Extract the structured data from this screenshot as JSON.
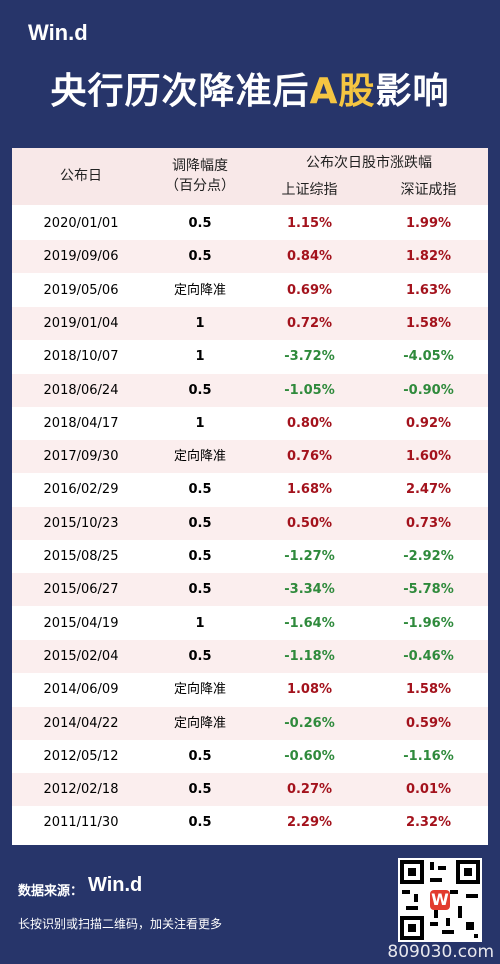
{
  "header": {
    "logo": "Win.d",
    "title": [
      "央行历次降准后",
      "A股",
      "影响"
    ]
  },
  "table": {
    "columns": [
      "公布日",
      "调降幅度",
      "公布次日股市涨跌幅"
    ],
    "columns_sub": [
      null,
      "（百分点）",
      null
    ],
    "subcolumns": [
      "上证综指",
      "深证成指"
    ],
    "rows": [
      [
        "2020/01/01",
        "0.5",
        "1.15%",
        "1.99%"
      ],
      [
        "2019/09/06",
        "0.5",
        "0.84%",
        "1.82%"
      ],
      [
        "2019/05/06",
        "定向降准",
        "0.69%",
        "1.63%"
      ],
      [
        "2019/01/04",
        "1",
        "0.72%",
        "1.58%"
      ],
      [
        "2018/10/07",
        "1",
        "-3.72%",
        "-4.05%"
      ],
      [
        "2018/06/24",
        "0.5",
        "-1.05%",
        "-0.90%"
      ],
      [
        "2018/04/17",
        "1",
        "0.80%",
        "0.92%"
      ],
      [
        "2017/09/30",
        "定向降准",
        "0.76%",
        "1.60%"
      ],
      [
        "2016/02/29",
        "0.5",
        "1.68%",
        "2.47%"
      ],
      [
        "2015/10/23",
        "0.5",
        "0.50%",
        "0.73%"
      ],
      [
        "2015/08/25",
        "0.5",
        "-1.27%",
        "-2.92%"
      ],
      [
        "2015/06/27",
        "0.5",
        "-3.34%",
        "-5.78%"
      ],
      [
        "2015/04/19",
        "1",
        "-1.64%",
        "-1.96%"
      ],
      [
        "2015/02/04",
        "0.5",
        "-1.18%",
        "-0.46%"
      ],
      [
        "2014/06/09",
        "定向降准",
        "1.08%",
        "1.58%"
      ],
      [
        "2014/04/22",
        "定向降准",
        "-0.26%",
        "0.59%"
      ],
      [
        "2012/05/12",
        "0.5",
        "-0.60%",
        "-1.16%"
      ],
      [
        "2012/02/18",
        "0.5",
        "0.27%",
        "0.01%"
      ],
      [
        "2011/11/30",
        "0.5",
        "2.29%",
        "2.32%"
      ]
    ]
  },
  "footer": {
    "source_label": "数据来源：",
    "source_logo": "Win.d",
    "note": "长按识别或扫描二维码，加关注看更多",
    "watermark": "809030.com"
  }
}
